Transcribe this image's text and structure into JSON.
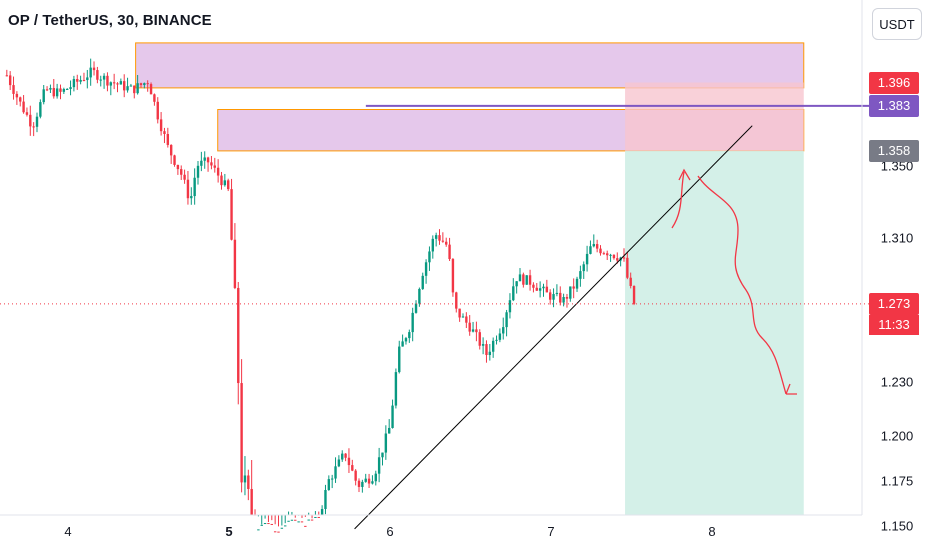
{
  "header": {
    "symbol_title": "OP / TetherUS, 30, BINANCE",
    "currency_button": "USDT"
  },
  "price_tags": {
    "target": {
      "label": "1.396",
      "color": "#f23645"
    },
    "level_line": {
      "label": "1.383",
      "color": "#7e57c2"
    },
    "entry": {
      "label": "1.358",
      "color": "#787b86"
    },
    "last": {
      "label": "1.273",
      "color": "#f23645"
    },
    "countdown": {
      "label": "11:33",
      "color": "#f23645"
    }
  },
  "chart_data": {
    "type": "candlestick",
    "symbol": "OP / TetherUS",
    "interval": "30",
    "exchange": "BINANCE",
    "ylim": [
      1.138,
      1.425
    ],
    "y_ticks": [
      1.15,
      1.175,
      1.2,
      1.23,
      1.27,
      1.31,
      1.35
    ],
    "y_tick_labels": [
      "1.150",
      "1.175",
      "1.200",
      "1.230",
      "1.270",
      "1.310",
      "1.350"
    ],
    "x_range_days": [
      3.6,
      8.95
    ],
    "x_ticks": [
      4,
      5,
      6,
      7,
      8
    ],
    "x_tick_labels": [
      "4",
      "5",
      "6",
      "7",
      "8"
    ],
    "last_price": 1.273,
    "colors": {
      "up": "#089981",
      "down": "#f23645"
    },
    "price_path": [
      [
        3.62,
        1.4
      ],
      [
        3.7,
        1.385
      ],
      [
        3.78,
        1.372
      ],
      [
        3.86,
        1.392
      ],
      [
        3.95,
        1.39
      ],
      [
        4.05,
        1.396
      ],
      [
        4.15,
        1.402
      ],
      [
        4.25,
        1.397
      ],
      [
        4.4,
        1.392
      ],
      [
        4.5,
        1.397
      ],
      [
        4.55,
        1.38
      ],
      [
        4.62,
        1.36
      ],
      [
        4.7,
        1.346
      ],
      [
        4.76,
        1.33
      ],
      [
        4.8,
        1.35
      ],
      [
        4.87,
        1.352
      ],
      [
        4.93,
        1.345
      ],
      [
        5.0,
        1.335
      ],
      [
        5.05,
        1.25
      ],
      [
        5.08,
        1.175
      ],
      [
        5.15,
        1.155
      ],
      [
        5.25,
        1.148
      ],
      [
        5.35,
        1.15
      ],
      [
        5.55,
        1.152
      ],
      [
        5.62,
        1.175
      ],
      [
        5.72,
        1.19
      ],
      [
        5.8,
        1.172
      ],
      [
        5.9,
        1.178
      ],
      [
        6.0,
        1.205
      ],
      [
        6.05,
        1.245
      ],
      [
        6.12,
        1.26
      ],
      [
        6.2,
        1.29
      ],
      [
        6.28,
        1.312
      ],
      [
        6.36,
        1.305
      ],
      [
        6.4,
        1.27
      ],
      [
        6.5,
        1.26
      ],
      [
        6.6,
        1.245
      ],
      [
        6.7,
        1.262
      ],
      [
        6.78,
        1.288
      ],
      [
        6.88,
        1.285
      ],
      [
        6.98,
        1.278
      ],
      [
        7.08,
        1.275
      ],
      [
        7.16,
        1.285
      ],
      [
        7.25,
        1.305
      ],
      [
        7.35,
        1.302
      ],
      [
        7.45,
        1.298
      ],
      [
        7.48,
        1.285
      ],
      [
        7.52,
        1.273
      ]
    ],
    "zones": [
      {
        "name": "supply-zone-upper",
        "x": [
          4.42,
          8.57
        ],
        "y": [
          1.393,
          1.418
        ],
        "fill": "#e1bee7",
        "stroke": "#ff9800"
      },
      {
        "name": "supply-zone-lower",
        "x": [
          4.93,
          8.57
        ],
        "y": [
          1.358,
          1.381
        ],
        "fill": "#e1bee7",
        "stroke": "#ff9800"
      }
    ],
    "short_position": {
      "x": [
        7.46,
        8.57
      ],
      "entry": 1.358,
      "stop": 1.396,
      "target": 1.148,
      "stop_fill": "#f7c6cf",
      "target_fill": "#cfeee6"
    },
    "horizontal_line": {
      "price": 1.383,
      "x_start": 5.85,
      "color": "#7e57c2"
    },
    "trendline": {
      "from": [
        5.78,
        1.148
      ],
      "to": [
        8.25,
        1.372
      ],
      "color": "#000000"
    },
    "annotations": [
      {
        "name": "arrow-up-annotation",
        "type": "curved-arrow",
        "direction": "up",
        "color": "#f23645"
      },
      {
        "name": "arrow-down-annotation",
        "type": "curved-arrow",
        "direction": "down",
        "color": "#f23645"
      }
    ]
  }
}
